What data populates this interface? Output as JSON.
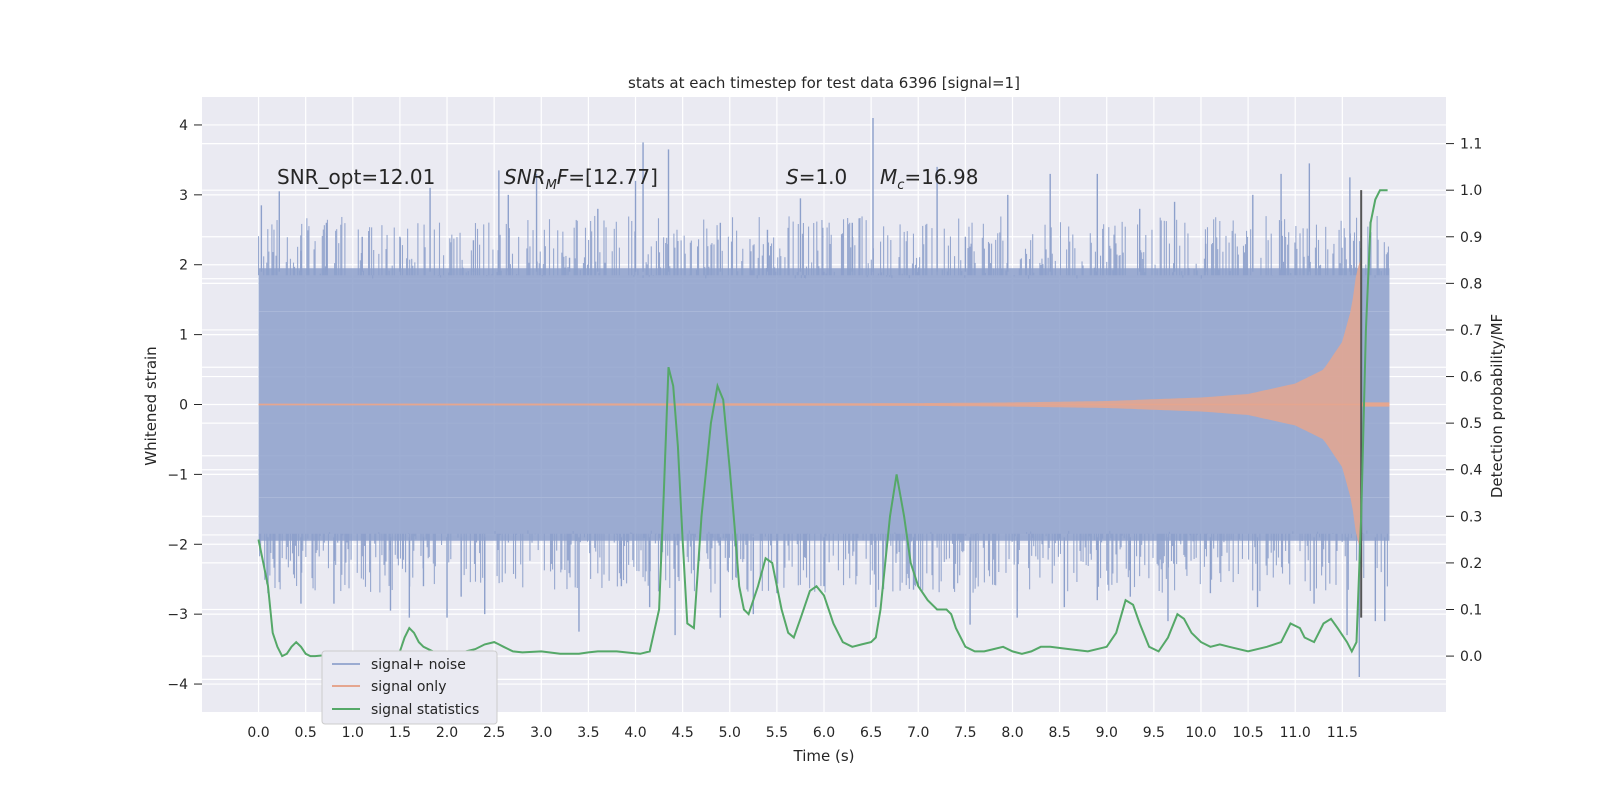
{
  "chart_data": {
    "type": "line",
    "title": "stats at each timestep for test data 6396 [signal=1]",
    "xlabel": "Time (s)",
    "ylabel": "Whitened strain",
    "y2label": "Detection probability/MF",
    "xlim": [
      -0.6,
      12.6
    ],
    "ylim": [
      -4.4,
      4.4
    ],
    "y2lim": [
      -0.12,
      1.2
    ],
    "xticks": [
      0.0,
      0.5,
      1.0,
      1.5,
      2.0,
      2.5,
      3.0,
      3.5,
      4.0,
      4.5,
      5.0,
      5.5,
      6.0,
      6.5,
      7.0,
      7.5,
      8.0,
      8.5,
      9.0,
      9.5,
      10.0,
      10.5,
      11.0,
      11.5
    ],
    "xtick_labels": [
      "0.0",
      "0.5",
      "1.0",
      "1.5",
      "2.0",
      "2.5",
      "3.0",
      "3.5",
      "4.0",
      "4.5",
      "5.0",
      "5.5",
      "6.0",
      "6.5",
      "7.0",
      "7.5",
      "8.0",
      "8.5",
      "9.0",
      "9.5",
      "10.0",
      "10.5",
      "11.0",
      "11.5"
    ],
    "yticks": [
      -4,
      -3,
      -2,
      -1,
      0,
      1,
      2,
      3,
      4
    ],
    "ytick_labels": [
      "−4",
      "−3",
      "−2",
      "−1",
      "0",
      "1",
      "2",
      "3",
      "4"
    ],
    "y2ticks": [
      0.0,
      0.1,
      0.2,
      0.3,
      0.4,
      0.5,
      0.6,
      0.7,
      0.8,
      0.9,
      1.0,
      1.1
    ],
    "y2tick_labels": [
      "0.0",
      "0.1",
      "0.2",
      "0.3",
      "0.4",
      "0.5",
      "0.6",
      "0.7",
      "0.8",
      "0.9",
      "1.0",
      "1.1"
    ],
    "y2_extra_gridlines": [
      -0.05,
      0.26,
      0.43,
      0.62,
      0.81
    ],
    "grid": true,
    "legend_position": "bottom-left",
    "annotations": {
      "snr_opt": "SNR_opt=12.01",
      "snr_mf": "SNR",
      "snr_mf_sub": "M",
      "snr_mf_rest": "F=[12.77]",
      "s_label": "S",
      "s_rest": "=1.0",
      "mc_label": "M",
      "mc_sub": "c",
      "mc_rest": "=16.98"
    },
    "merger_time": 11.7,
    "noise_series": {
      "name": "signal+ noise",
      "color": "#8da0cb",
      "t_start": 0.0,
      "t_end": 12.0,
      "envelope_upper": 1.95,
      "envelope_lower": -1.95,
      "spikes_upper": [
        [
          0.03,
          2.85
        ],
        [
          0.22,
          3.05
        ],
        [
          0.45,
          2.2
        ],
        [
          0.72,
          2.6
        ],
        [
          1.1,
          2.4
        ],
        [
          1.5,
          2.4
        ],
        [
          1.82,
          3.1
        ],
        [
          2.28,
          2.35
        ],
        [
          2.55,
          3.35
        ],
        [
          2.65,
          3.0
        ],
        [
          2.95,
          3.3
        ],
        [
          3.3,
          2.1
        ],
        [
          3.6,
          2.8
        ],
        [
          4.0,
          3.2
        ],
        [
          4.08,
          3.75
        ],
        [
          4.35,
          3.65
        ],
        [
          4.9,
          2.6
        ],
        [
          5.4,
          2.5
        ],
        [
          5.75,
          2.95
        ],
        [
          6.3,
          2.6
        ],
        [
          6.52,
          4.1
        ],
        [
          7.2,
          3.4
        ],
        [
          7.5,
          2.4
        ],
        [
          7.95,
          3.0
        ],
        [
          8.4,
          3.3
        ],
        [
          8.9,
          3.3
        ],
        [
          9.35,
          2.8
        ],
        [
          9.72,
          2.9
        ],
        [
          10.05,
          2.3
        ],
        [
          10.55,
          3.0
        ],
        [
          10.85,
          3.3
        ],
        [
          11.15,
          3.45
        ],
        [
          11.58,
          3.25
        ],
        [
          11.9,
          1.9
        ]
      ],
      "spikes_lower": [
        [
          0.1,
          -2.7
        ],
        [
          0.45,
          -2.85
        ],
        [
          0.8,
          -2.85
        ],
        [
          1.4,
          -2.95
        ],
        [
          1.6,
          -3.05
        ],
        [
          1.75,
          -2.6
        ],
        [
          2.0,
          -3.05
        ],
        [
          2.15,
          -2.75
        ],
        [
          2.4,
          -3.0
        ],
        [
          3.4,
          -3.25
        ],
        [
          3.85,
          -2.6
        ],
        [
          4.15,
          -2.9
        ],
        [
          4.42,
          -3.3
        ],
        [
          4.9,
          -3.05
        ],
        [
          5.25,
          -3.0
        ],
        [
          5.5,
          -2.7
        ],
        [
          6.0,
          -2.6
        ],
        [
          6.55,
          -2.9
        ],
        [
          6.95,
          -2.65
        ],
        [
          7.55,
          -3.15
        ],
        [
          8.05,
          -3.05
        ],
        [
          8.55,
          -2.9
        ],
        [
          8.9,
          -2.8
        ],
        [
          9.25,
          -2.75
        ],
        [
          9.65,
          -3.1
        ],
        [
          10.1,
          -2.7
        ],
        [
          10.6,
          -2.9
        ],
        [
          11.2,
          -2.85
        ],
        [
          11.55,
          -3.3
        ],
        [
          11.68,
          -3.9
        ],
        [
          11.85,
          -3.1
        ],
        [
          11.95,
          -3.1
        ]
      ]
    },
    "signal_series": {
      "name": "signal only",
      "color": "#e5a68f",
      "amplitude": [
        [
          0.0,
          0.01
        ],
        [
          7.0,
          0.02
        ],
        [
          8.0,
          0.03
        ],
        [
          9.0,
          0.05
        ],
        [
          10.0,
          0.1
        ],
        [
          10.5,
          0.15
        ],
        [
          11.0,
          0.3
        ],
        [
          11.3,
          0.5
        ],
        [
          11.5,
          0.9
        ],
        [
          11.6,
          1.4
        ],
        [
          11.65,
          1.9
        ],
        [
          11.7,
          2.1
        ]
      ],
      "ringdown_level": 0.03
    },
    "stat_series": {
      "name": "signal statistics",
      "color": "#55a868",
      "points": [
        [
          0.0,
          0.25
        ],
        [
          0.05,
          0.2
        ],
        [
          0.1,
          0.15
        ],
        [
          0.15,
          0.05
        ],
        [
          0.2,
          0.02
        ],
        [
          0.25,
          0.0
        ],
        [
          0.3,
          0.005
        ],
        [
          0.35,
          0.02
        ],
        [
          0.4,
          0.03
        ],
        [
          0.45,
          0.02
        ],
        [
          0.5,
          0.005
        ],
        [
          0.55,
          0.0
        ],
        [
          0.6,
          0.0
        ],
        [
          0.7,
          0.002
        ],
        [
          0.8,
          0.0
        ],
        [
          0.9,
          0.002
        ],
        [
          1.0,
          0.0
        ],
        [
          1.1,
          0.0
        ],
        [
          1.2,
          0.002
        ],
        [
          1.3,
          0.003
        ],
        [
          1.4,
          0.0
        ],
        [
          1.5,
          0.01
        ],
        [
          1.55,
          0.04
        ],
        [
          1.6,
          0.06
        ],
        [
          1.65,
          0.05
        ],
        [
          1.7,
          0.03
        ],
        [
          1.75,
          0.02
        ],
        [
          1.85,
          0.01
        ],
        [
          2.0,
          0.005
        ],
        [
          2.1,
          0.008
        ],
        [
          2.2,
          0.01
        ],
        [
          2.3,
          0.015
        ],
        [
          2.4,
          0.025
        ],
        [
          2.5,
          0.03
        ],
        [
          2.55,
          0.025
        ],
        [
          2.6,
          0.02
        ],
        [
          2.7,
          0.01
        ],
        [
          2.8,
          0.008
        ],
        [
          3.0,
          0.01
        ],
        [
          3.2,
          0.005
        ],
        [
          3.4,
          0.005
        ],
        [
          3.5,
          0.008
        ],
        [
          3.6,
          0.01
        ],
        [
          3.8,
          0.01
        ],
        [
          3.9,
          0.008
        ],
        [
          4.05,
          0.005
        ],
        [
          4.15,
          0.01
        ],
        [
          4.25,
          0.1
        ],
        [
          4.3,
          0.35
        ],
        [
          4.35,
          0.62
        ],
        [
          4.4,
          0.58
        ],
        [
          4.45,
          0.45
        ],
        [
          4.5,
          0.25
        ],
        [
          4.55,
          0.07
        ],
        [
          4.62,
          0.06
        ],
        [
          4.7,
          0.3
        ],
        [
          4.8,
          0.5
        ],
        [
          4.87,
          0.58
        ],
        [
          4.93,
          0.55
        ],
        [
          5.0,
          0.4
        ],
        [
          5.05,
          0.28
        ],
        [
          5.1,
          0.15
        ],
        [
          5.15,
          0.1
        ],
        [
          5.2,
          0.09
        ],
        [
          5.3,
          0.15
        ],
        [
          5.38,
          0.21
        ],
        [
          5.45,
          0.2
        ],
        [
          5.55,
          0.1
        ],
        [
          5.62,
          0.05
        ],
        [
          5.68,
          0.04
        ],
        [
          5.75,
          0.08
        ],
        [
          5.85,
          0.14
        ],
        [
          5.92,
          0.15
        ],
        [
          6.0,
          0.13
        ],
        [
          6.1,
          0.07
        ],
        [
          6.2,
          0.03
        ],
        [
          6.3,
          0.02
        ],
        [
          6.4,
          0.025
        ],
        [
          6.5,
          0.03
        ],
        [
          6.55,
          0.04
        ],
        [
          6.6,
          0.1
        ],
        [
          6.7,
          0.3
        ],
        [
          6.77,
          0.39
        ],
        [
          6.85,
          0.3
        ],
        [
          6.92,
          0.2
        ],
        [
          7.0,
          0.15
        ],
        [
          7.1,
          0.12
        ],
        [
          7.2,
          0.1
        ],
        [
          7.3,
          0.1
        ],
        [
          7.35,
          0.09
        ],
        [
          7.4,
          0.06
        ],
        [
          7.5,
          0.02
        ],
        [
          7.6,
          0.01
        ],
        [
          7.7,
          0.01
        ],
        [
          7.8,
          0.015
        ],
        [
          7.9,
          0.02
        ],
        [
          8.0,
          0.01
        ],
        [
          8.1,
          0.005
        ],
        [
          8.2,
          0.01
        ],
        [
          8.3,
          0.02
        ],
        [
          8.4,
          0.02
        ],
        [
          8.6,
          0.015
        ],
        [
          8.8,
          0.01
        ],
        [
          9.0,
          0.02
        ],
        [
          9.1,
          0.05
        ],
        [
          9.2,
          0.12
        ],
        [
          9.28,
          0.11
        ],
        [
          9.35,
          0.07
        ],
        [
          9.45,
          0.02
        ],
        [
          9.55,
          0.01
        ],
        [
          9.65,
          0.04
        ],
        [
          9.75,
          0.09
        ],
        [
          9.82,
          0.08
        ],
        [
          9.9,
          0.05
        ],
        [
          10.0,
          0.03
        ],
        [
          10.1,
          0.02
        ],
        [
          10.2,
          0.025
        ],
        [
          10.3,
          0.02
        ],
        [
          10.5,
          0.01
        ],
        [
          10.7,
          0.02
        ],
        [
          10.85,
          0.03
        ],
        [
          10.95,
          0.07
        ],
        [
          11.05,
          0.06
        ],
        [
          11.1,
          0.04
        ],
        [
          11.2,
          0.03
        ],
        [
          11.3,
          0.07
        ],
        [
          11.38,
          0.08
        ],
        [
          11.45,
          0.06
        ],
        [
          11.55,
          0.03
        ],
        [
          11.6,
          0.01
        ],
        [
          11.65,
          0.03
        ],
        [
          11.7,
          0.3
        ],
        [
          11.75,
          0.7
        ],
        [
          11.8,
          0.93
        ],
        [
          11.85,
          0.98
        ],
        [
          11.9,
          1.0
        ],
        [
          11.98,
          1.0
        ]
      ]
    },
    "legend": [
      "signal+ noise",
      "signal only",
      "signal statistics"
    ]
  }
}
